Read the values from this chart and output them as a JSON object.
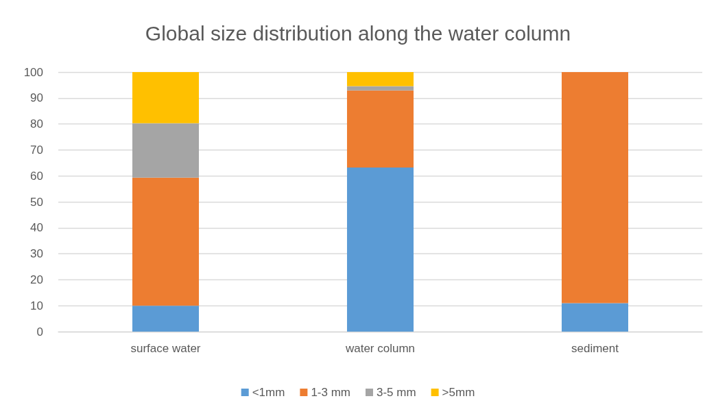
{
  "chart_data": {
    "type": "bar",
    "title": "Global size distribution along the water column",
    "categories": [
      "surface water",
      "water column",
      "sediment"
    ],
    "series": [
      {
        "name": "<1mm",
        "color": "#5b9bd5",
        "values": [
          10,
          63.2,
          11
        ]
      },
      {
        "name": "1-3 mm",
        "color": "#ed7d31",
        "values": [
          49.3,
          29.7,
          89
        ]
      },
      {
        "name": "3-5 mm",
        "color": "#a5a5a5",
        "values": [
          21,
          1.7,
          0
        ]
      },
      {
        "name": ">5mm",
        "color": "#ffc000",
        "values": [
          19.7,
          5.4,
          0
        ]
      }
    ],
    "stacked": true,
    "ylim": [
      0,
      100
    ],
    "yticks": [
      0,
      10,
      20,
      30,
      40,
      50,
      60,
      70,
      80,
      90,
      100
    ],
    "grid": "y",
    "legend": "bottom"
  }
}
